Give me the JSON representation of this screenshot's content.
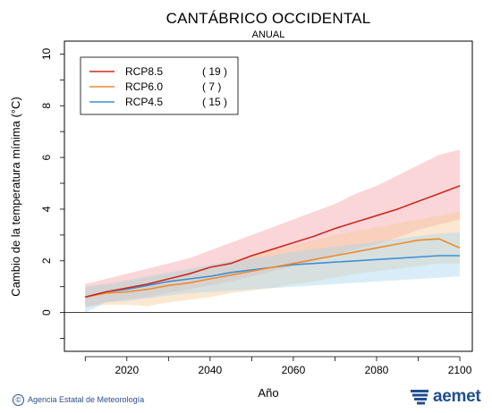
{
  "chart_data": {
    "type": "line",
    "title": "CANTÁBRICO OCCIDENTAL",
    "subtitle": "ANUAL",
    "xlabel": "Año",
    "ylabel": "Cambio de la temperatura mínima (°C)",
    "xlim": [
      2005,
      2103
    ],
    "ylim": [
      -1.5,
      10.5
    ],
    "xticks": [
      2020,
      2040,
      2060,
      2080,
      2100
    ],
    "yticks": [
      0,
      2,
      4,
      6,
      8,
      10
    ],
    "zero_line": 0,
    "legend_position": "top-left",
    "series": [
      {
        "name": "RCP8.5",
        "count": "( 19 )",
        "color": "#cc2a1d",
        "band_color": "#f3a3a8",
        "x": [
          2010,
          2015,
          2020,
          2025,
          2030,
          2035,
          2040,
          2045,
          2050,
          2055,
          2060,
          2065,
          2070,
          2075,
          2080,
          2085,
          2090,
          2095,
          2100
        ],
        "values": [
          0.6,
          0.8,
          0.95,
          1.1,
          1.3,
          1.5,
          1.75,
          1.9,
          2.2,
          2.45,
          2.7,
          2.95,
          3.25,
          3.5,
          3.75,
          4.0,
          4.3,
          4.6,
          4.9
        ],
        "band_low": [
          0.2,
          0.4,
          0.5,
          0.6,
          0.75,
          0.9,
          1.05,
          1.2,
          1.4,
          1.6,
          1.8,
          2.0,
          2.2,
          2.45,
          2.65,
          2.9,
          3.2,
          3.4,
          3.6
        ],
        "band_high": [
          1.1,
          1.3,
          1.5,
          1.7,
          1.9,
          2.1,
          2.4,
          2.7,
          3.0,
          3.3,
          3.6,
          3.9,
          4.2,
          4.6,
          4.9,
          5.3,
          5.7,
          6.1,
          6.3
        ]
      },
      {
        "name": "RCP6.0",
        "count": "(   7 )",
        "color": "#ee8a2a",
        "band_color": "#f8c99a",
        "x": [
          2010,
          2015,
          2020,
          2025,
          2030,
          2035,
          2040,
          2045,
          2050,
          2055,
          2060,
          2065,
          2070,
          2075,
          2080,
          2085,
          2090,
          2095,
          2100
        ],
        "values": [
          0.6,
          0.75,
          0.8,
          0.9,
          1.05,
          1.15,
          1.3,
          1.45,
          1.6,
          1.75,
          1.9,
          2.05,
          2.2,
          2.35,
          2.5,
          2.65,
          2.8,
          2.85,
          2.5
        ],
        "band_low": [
          0.2,
          0.3,
          0.3,
          0.25,
          0.4,
          0.5,
          0.6,
          0.75,
          0.85,
          0.95,
          1.1,
          1.2,
          1.35,
          1.5,
          1.6,
          1.7,
          1.8,
          1.9,
          1.9
        ],
        "band_high": [
          1.0,
          1.1,
          1.2,
          1.35,
          1.5,
          1.65,
          1.8,
          2.0,
          2.2,
          2.4,
          2.6,
          2.8,
          3.0,
          3.15,
          3.3,
          3.45,
          3.6,
          3.75,
          3.9
        ]
      },
      {
        "name": "RCP4.5",
        "count": "( 15 )",
        "color": "#3d8fd6",
        "band_color": "#a9d6ee",
        "x": [
          2010,
          2015,
          2020,
          2025,
          2030,
          2035,
          2040,
          2045,
          2050,
          2055,
          2060,
          2065,
          2070,
          2075,
          2080,
          2085,
          2090,
          2095,
          2100
        ],
        "values": [
          0.6,
          0.8,
          0.9,
          1.05,
          1.2,
          1.3,
          1.4,
          1.55,
          1.65,
          1.75,
          1.85,
          1.9,
          1.95,
          2.0,
          2.05,
          2.1,
          2.15,
          2.2,
          2.2
        ],
        "band_low": [
          0.0,
          0.4,
          0.45,
          0.55,
          0.65,
          0.75,
          0.8,
          0.85,
          0.9,
          0.95,
          1.0,
          1.05,
          1.1,
          1.15,
          1.2,
          1.25,
          1.3,
          1.35,
          1.4
        ],
        "band_high": [
          1.0,
          1.1,
          1.25,
          1.4,
          1.55,
          1.7,
          1.85,
          2.0,
          2.1,
          2.2,
          2.35,
          2.45,
          2.55,
          2.65,
          2.75,
          2.85,
          2.95,
          3.05,
          3.1
        ]
      }
    ]
  },
  "footer": {
    "agency": "Agencia Estatal de Meteorología",
    "copyright_symbol": "©",
    "logo_text": "aemet"
  }
}
